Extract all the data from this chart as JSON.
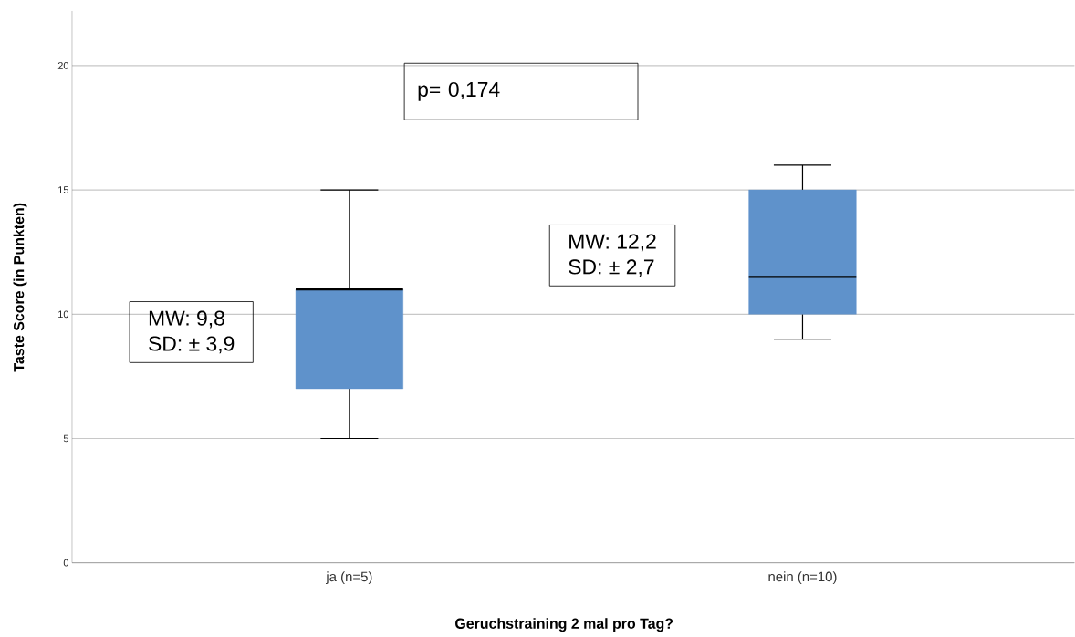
{
  "chart_data": {
    "type": "box",
    "xlabel": "Geruchstraining 2 mal pro Tag?",
    "ylabel": "Taste Score (in Punkten)",
    "categories": [
      "ja (n=5)",
      "nein (n=10)"
    ],
    "boxes": [
      {
        "low": 5,
        "q1": 7,
        "median": 11,
        "q3": 11,
        "high": 15
      },
      {
        "low": 9,
        "q1": 10,
        "median": 11.5,
        "q3": 15,
        "high": 16
      }
    ],
    "color": "#5f92cb",
    "ylim": [
      0,
      22.2
    ],
    "yticks": [
      0,
      5,
      10,
      15,
      20
    ],
    "grid": "y",
    "annotations": [
      "p= 0,174",
      "MW: 9,8",
      "SD: ± 3,9",
      "MW: 12,2",
      "SD: ± 2,7"
    ]
  }
}
